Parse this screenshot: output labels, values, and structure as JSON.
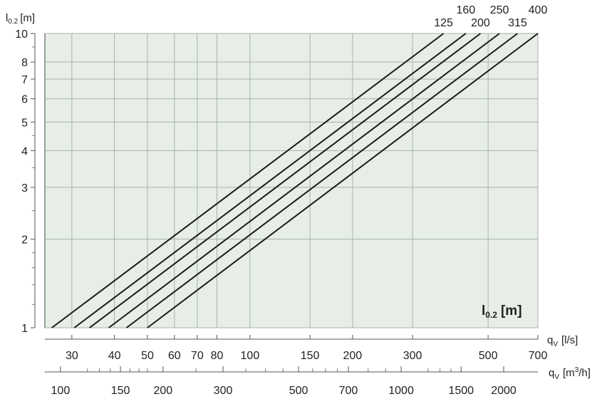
{
  "chart_data": {
    "type": "line",
    "title": "",
    "y_axis": {
      "label": "l",
      "label_sub": "0.2",
      "label_unit": "[m]",
      "scale": "log",
      "range": [
        1,
        10
      ],
      "major_ticks": [
        1,
        2,
        3,
        4,
        5,
        6,
        7,
        8,
        10
      ],
      "minor_ticks": [
        1.2,
        1.4,
        1.6,
        1.8,
        2.5,
        3.5,
        4.5,
        9
      ]
    },
    "x_axis_ls": {
      "label": "q",
      "label_sub": "V",
      "label_unit": "[l/s]",
      "scale": "log",
      "range": [
        25,
        700
      ],
      "ticks": [
        30,
        40,
        50,
        60,
        70,
        80,
        100,
        150,
        200,
        300,
        500,
        700
      ]
    },
    "x_axis_m3h": {
      "label": "q",
      "label_sub": "V",
      "label_unit_pre": "[m",
      "label_unit_sup": "3",
      "label_unit_post": "/h]",
      "scale": "log",
      "range": [
        90,
        2520
      ],
      "ticks": [
        100,
        150,
        200,
        300,
        500,
        700,
        1000,
        1500,
        2000
      ],
      "minor_ticks": [
        120,
        130,
        140,
        160,
        170,
        180,
        250,
        350,
        400,
        450,
        550,
        600,
        650,
        800,
        900,
        1200,
        1300,
        1400
      ]
    },
    "grid": true,
    "background": "#e6eee6",
    "line_color": "#1a1a1a",
    "inside_label": "l",
    "inside_label_sub": "0.2",
    "inside_label_unit": "[m]",
    "series": [
      {
        "name": "125",
        "points": [
          [
            26.2,
            1
          ],
          [
            370,
            10
          ]
        ]
      },
      {
        "name": "160",
        "points": [
          [
            30.5,
            1
          ],
          [
            430,
            10
          ]
        ]
      },
      {
        "name": "200",
        "points": [
          [
            33.8,
            1
          ],
          [
            475,
            10
          ]
        ]
      },
      {
        "name": "250",
        "points": [
          [
            38.5,
            1
          ],
          [
            540,
            10
          ]
        ]
      },
      {
        "name": "315",
        "points": [
          [
            43.4,
            1
          ],
          [
            610,
            10
          ]
        ]
      },
      {
        "name": "400",
        "points": [
          [
            50.0,
            1
          ],
          [
            700,
            10
          ]
        ]
      }
    ]
  }
}
